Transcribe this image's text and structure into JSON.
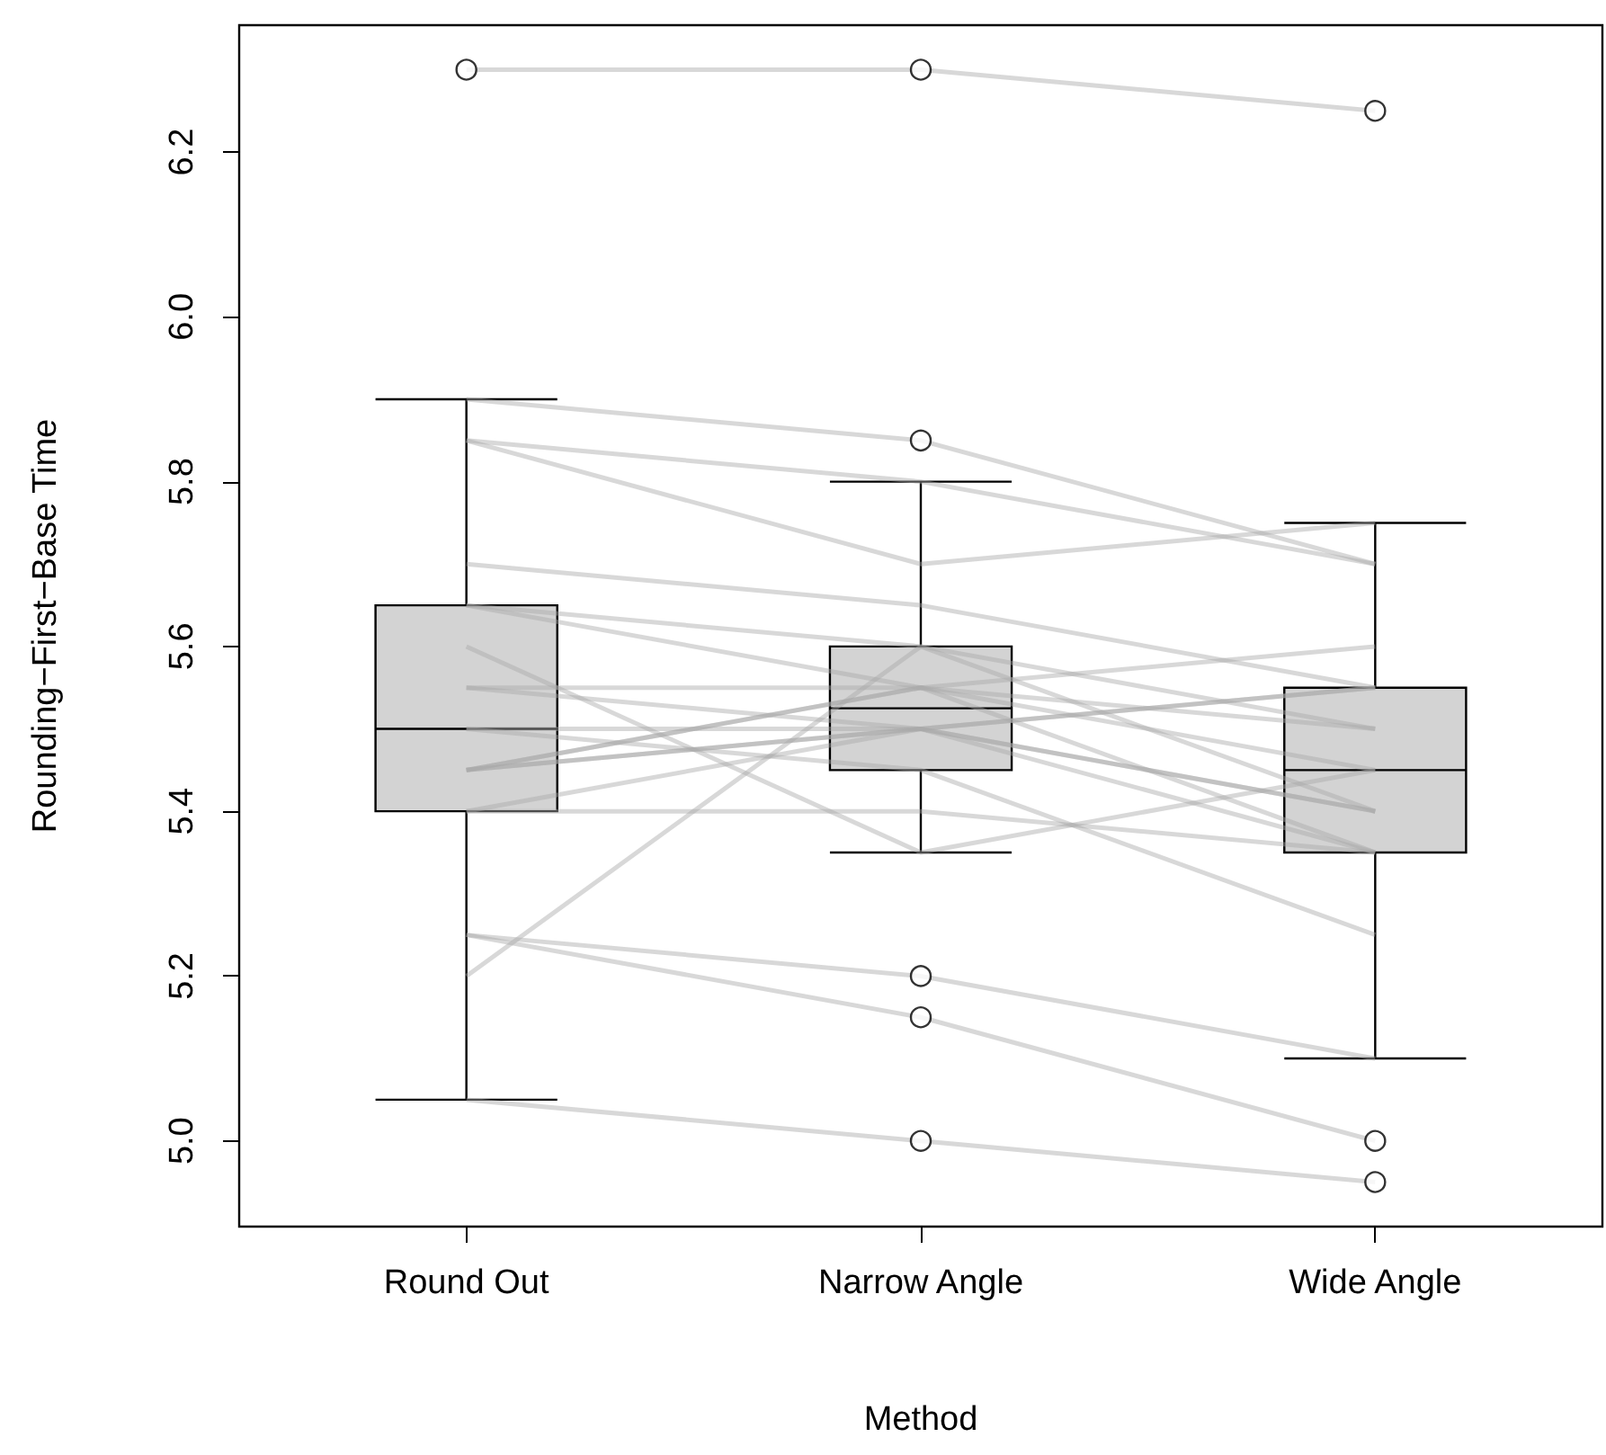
{
  "chart_data": {
    "type": "box",
    "xlabel": "Method",
    "ylabel": "Rounding−First−Base Time",
    "categories": [
      "Round Out",
      "Narrow Angle",
      "Wide Angle"
    ],
    "ylim": [
      4.896,
      6.354
    ],
    "yticks": [
      {
        "value": 5,
        "label": "5.0"
      },
      5.2,
      5.4,
      5.6,
      5.8,
      {
        "value": 6,
        "label": "6.0"
      },
      6.2
    ],
    "series": [
      {
        "type": "box",
        "color": "#d3d3d3",
        "boxes": [
          {
            "low": 5.05,
            "q1": 5.4,
            "median": 5.5,
            "q3": 5.65,
            "high": 5.9,
            "outliers": [
              6.3
            ]
          },
          {
            "low": 5.35,
            "q1": 5.45,
            "median": 5.525,
            "q3": 5.6,
            "high": 5.8,
            "outliers": [
              6.3,
              5.85,
              5.2,
              5.15,
              5.0
            ]
          },
          {
            "low": 5.1,
            "q1": 5.35,
            "median": 5.45,
            "q3": 5.55,
            "high": 5.75,
            "outliers": [
              6.25,
              5.0,
              4.95
            ]
          }
        ]
      },
      {
        "type": "line",
        "color": "#a8a8a8",
        "values": [
          5.4,
          5.5,
          5.55
        ]
      },
      {
        "type": "line",
        "color": "#a8a8a8",
        "values": [
          5.85,
          5.7,
          5.75
        ]
      },
      {
        "type": "line",
        "color": "#a8a8a8",
        "values": [
          5.2,
          5.6,
          5.5
        ]
      },
      {
        "type": "line",
        "color": "#a8a8a8",
        "values": [
          5.55,
          5.5,
          5.4
        ]
      },
      {
        "type": "line",
        "color": "#a8a8a8",
        "values": [
          5.9,
          5.85,
          5.7
        ]
      },
      {
        "type": "line",
        "color": "#a8a8a8",
        "values": [
          5.45,
          5.55,
          5.6
        ]
      },
      {
        "type": "line",
        "color": "#a8a8a8",
        "values": [
          5.4,
          5.4,
          5.35
        ]
      },
      {
        "type": "line",
        "color": "#a8a8a8",
        "values": [
          5.45,
          5.5,
          5.35
        ]
      },
      {
        "type": "line",
        "color": "#a8a8a8",
        "values": [
          5.25,
          5.15,
          5.0
        ]
      },
      {
        "type": "line",
        "color": "#a8a8a8",
        "values": [
          5.85,
          5.8,
          5.7
        ]
      },
      {
        "type": "line",
        "color": "#a8a8a8",
        "values": [
          5.25,
          5.2,
          5.1
        ]
      },
      {
        "type": "line",
        "color": "#a8a8a8",
        "values": [
          5.65,
          5.55,
          5.45
        ]
      },
      {
        "type": "line",
        "color": "#a8a8a8",
        "values": [
          5.6,
          5.35,
          5.45
        ]
      },
      {
        "type": "line",
        "color": "#a8a8a8",
        "values": [
          5.05,
          5.0,
          4.95
        ]
      },
      {
        "type": "line",
        "color": "#a8a8a8",
        "values": [
          5.5,
          5.5,
          5.4
        ]
      },
      {
        "type": "line",
        "color": "#a8a8a8",
        "values": [
          5.45,
          5.55,
          5.5
        ]
      },
      {
        "type": "line",
        "color": "#a8a8a8",
        "values": [
          5.55,
          5.55,
          5.35
        ]
      },
      {
        "type": "line",
        "color": "#a8a8a8",
        "values": [
          5.45,
          5.5,
          5.55
        ]
      },
      {
        "type": "line",
        "color": "#a8a8a8",
        "values": [
          5.5,
          5.45,
          5.25
        ]
      },
      {
        "type": "line",
        "color": "#a8a8a8",
        "values": [
          5.65,
          5.6,
          5.4
        ]
      },
      {
        "type": "line",
        "color": "#a8a8a8",
        "values": [
          5.7,
          5.65,
          5.55
        ]
      },
      {
        "type": "line",
        "color": "#a8a8a8",
        "values": [
          6.3,
          6.3,
          6.25
        ]
      }
    ]
  }
}
